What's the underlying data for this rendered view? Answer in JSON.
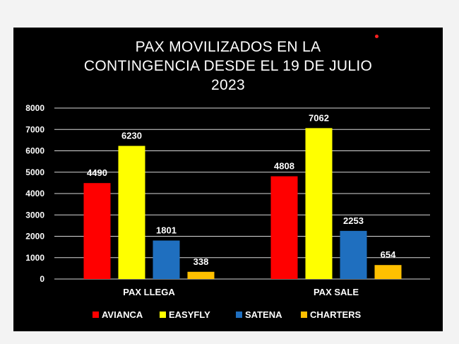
{
  "chart_data": {
    "type": "bar",
    "title": "PAX MOVILIZADOS  EN LA\nCONTINGENCIA DESDE EL 19 DE JULIO\n2023",
    "categories": [
      "PAX LLEGA",
      "PAX SALE"
    ],
    "series": [
      {
        "name": "AVIANCA",
        "values": [
          4490,
          4808
        ],
        "color": "#ff0000"
      },
      {
        "name": "EASYFLY",
        "values": [
          6230,
          7062
        ],
        "color": "#ffff00"
      },
      {
        "name": "SATENA",
        "values": [
          1801,
          2253
        ],
        "color": "#1f6fbf"
      },
      {
        "name": "CHARTERS",
        "values": [
          338,
          654
        ],
        "color": "#ffc000"
      }
    ],
    "ylim": [
      0,
      8000
    ],
    "yticks": [
      0,
      1000,
      2000,
      3000,
      4000,
      5000,
      6000,
      7000,
      8000
    ],
    "grid": true,
    "legend": "bottom",
    "background": "#000000",
    "text_color": "#ffffff"
  }
}
